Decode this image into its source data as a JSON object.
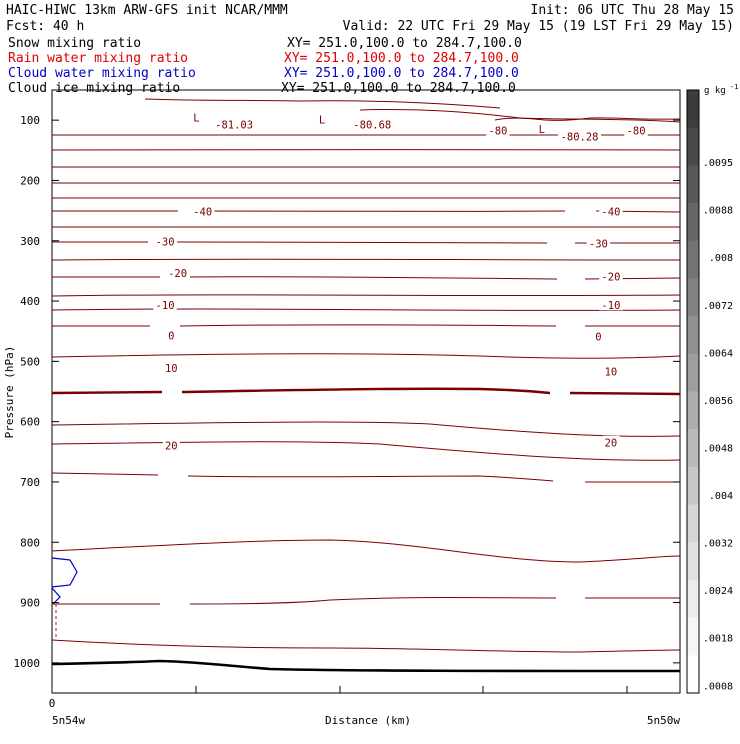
{
  "header": {
    "line1_left": "HAIC-HIWC 13km ARW-GFS init   NCAR/MMM",
    "line1_right": "Init: 06 UTC Thu 28 May 15",
    "line2_left": "Fcst:   40 h",
    "line2_right": "Valid: 22 UTC Fri 29 May 15 (19 LST Fri 29 May 15)",
    "fields": [
      {
        "name": "Snow mixing ratio",
        "xy": "XY= 251.0,100.0 to 284.7,100.0",
        "color": "#000000"
      },
      {
        "name": "Rain water mixing ratio",
        "xy": "XY= 251.0,100.0 to 284.7,100.0",
        "color": "#e00000"
      },
      {
        "name": "Cloud water mixing ratio",
        "xy": "XY= 251.0,100.0 to 284.7,100.0",
        "color": "#0000c8"
      },
      {
        "name": "Cloud ice mixing ratio",
        "xy": "XY= 251.0,100.0 to 284.7,100.0",
        "color": "#000000"
      }
    ]
  },
  "chart_data": {
    "type": "line",
    "ylabel": "Pressure (hPa)",
    "xlabel": "Distance (km)",
    "y_ticks": [
      100,
      200,
      300,
      400,
      500,
      600,
      700,
      800,
      900,
      1000
    ],
    "ylim": [
      50,
      1050
    ],
    "x_tick_label": "0",
    "x_left_label": "5n54w",
    "x_right_label": "5n50w",
    "contour_labels": [
      {
        "text": "-81.03",
        "x": 0.29,
        "y": 108
      },
      {
        "text": "-80.68",
        "x": 0.51,
        "y": 108
      },
      {
        "text": "-80",
        "x": 0.71,
        "y": 118
      },
      {
        "text": "-80.28",
        "x": 0.84,
        "y": 128
      },
      {
        "text": "-80",
        "x": 0.93,
        "y": 118
      },
      {
        "text": "-40",
        "x": 0.24,
        "y": 252
      },
      {
        "text": "-40",
        "x": 0.89,
        "y": 252
      },
      {
        "text": "-30",
        "x": 0.18,
        "y": 302
      },
      {
        "text": "-30",
        "x": 0.87,
        "y": 305
      },
      {
        "text": "-20",
        "x": 0.2,
        "y": 354
      },
      {
        "text": "-20",
        "x": 0.89,
        "y": 360
      },
      {
        "text": "-10",
        "x": 0.18,
        "y": 407
      },
      {
        "text": "-10",
        "x": 0.89,
        "y": 407
      },
      {
        "text": "0",
        "x": 0.19,
        "y": 458
      },
      {
        "text": "0",
        "x": 0.87,
        "y": 460
      },
      {
        "text": "10",
        "x": 0.19,
        "y": 512
      },
      {
        "text": "10",
        "x": 0.89,
        "y": 518
      },
      {
        "text": "20",
        "x": 0.19,
        "y": 640
      },
      {
        "text": "20",
        "x": 0.89,
        "y": 635
      }
    ],
    "low_markers": [
      {
        "text": "L",
        "x": 0.23,
        "y": 96
      },
      {
        "text": "L",
        "x": 0.43,
        "y": 99
      },
      {
        "text": "L",
        "x": 0.78,
        "y": 115
      }
    ],
    "colorbar": {
      "unit": "g kg",
      "unit_sup": "-1",
      "labels": [
        ".0095",
        ".0088",
        ".008",
        ".0072",
        ".0064",
        ".0056",
        ".0048",
        ".004",
        ".0032",
        ".0024",
        ".0018",
        ".0008"
      ],
      "colors": [
        "#3c3c3c",
        "#4a4a4a",
        "#585858",
        "#666666",
        "#747474",
        "#828282",
        "#909090",
        "#9e9e9e",
        "#acacac",
        "#bababa",
        "#c8c8c8",
        "#d6d6d6",
        "#e2e2e2",
        "#ececec",
        "#f6f6f6",
        "#ffffff"
      ]
    }
  }
}
